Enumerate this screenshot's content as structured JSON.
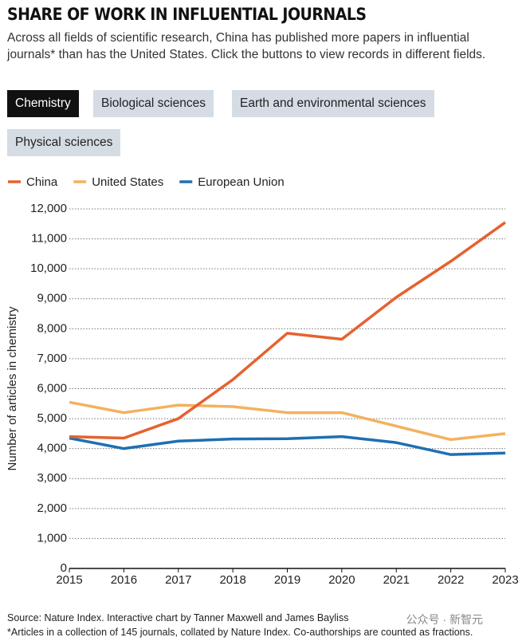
{
  "chart_data": {
    "type": "line",
    "title": "SHARE OF WORK IN INFLUENTIAL JOURNALS",
    "subtitle": "Across all fields of scientific research, China has published more papers in influential journals* than has the United States. Click the buttons to view records in different fields.",
    "buttons": [
      "Chemistry",
      "Biological sciences",
      "Earth and environmental sciences",
      "Physical sciences"
    ],
    "active_button": 0,
    "y_label": "Number of articles in chemistry",
    "x": [
      2015,
      2016,
      2017,
      2018,
      2019,
      2020,
      2021,
      2022,
      2023
    ],
    "xlim": [
      2015,
      2023
    ],
    "xticks": [
      2015,
      2016,
      2017,
      2018,
      2019,
      2020,
      2021,
      2022,
      2023
    ],
    "ylim": [
      0,
      12000
    ],
    "yticks": [
      0,
      {
        "value": 1000,
        "label": "1,000"
      },
      {
        "value": 2000,
        "label": "2,000"
      },
      {
        "value": 3000,
        "label": "3,000"
      },
      {
        "value": 4000,
        "label": "4,000"
      },
      {
        "value": 5000,
        "label": "5,000"
      },
      {
        "value": 6000,
        "label": "6,000"
      },
      {
        "value": 7000,
        "label": "7,000"
      },
      {
        "value": 8000,
        "label": "8,000"
      },
      {
        "value": 9000,
        "label": "9,000"
      },
      {
        "value": 10000,
        "label": "10,000"
      },
      {
        "value": 11000,
        "label": "11,000"
      },
      {
        "value": 12000,
        "label": "12,000"
      }
    ],
    "grid": true,
    "legend": "top-left",
    "series": [
      {
        "name": "China",
        "color": "#e5622f",
        "values": [
          4400,
          4350,
          5000,
          6300,
          7850,
          7650,
          9050,
          10250,
          11550
        ]
      },
      {
        "name": "United States",
        "color": "#f4b15f",
        "values": [
          5550,
          5200,
          5450,
          5400,
          5200,
          5200,
          4750,
          4300,
          4500
        ]
      },
      {
        "name": "European Union",
        "color": "#1f6fb2",
        "values": [
          4350,
          4000,
          4250,
          4320,
          4330,
          4400,
          4200,
          3800,
          3850
        ]
      }
    ],
    "source": "Source: Nature Index. Interactive chart by Tanner Maxwell and James Bayliss",
    "footnote": "*Articles in a collection of 145 journals, collated by Nature Index. Co-authorships are counted as fractions.",
    "watermark": "公众号 · 新智元"
  }
}
